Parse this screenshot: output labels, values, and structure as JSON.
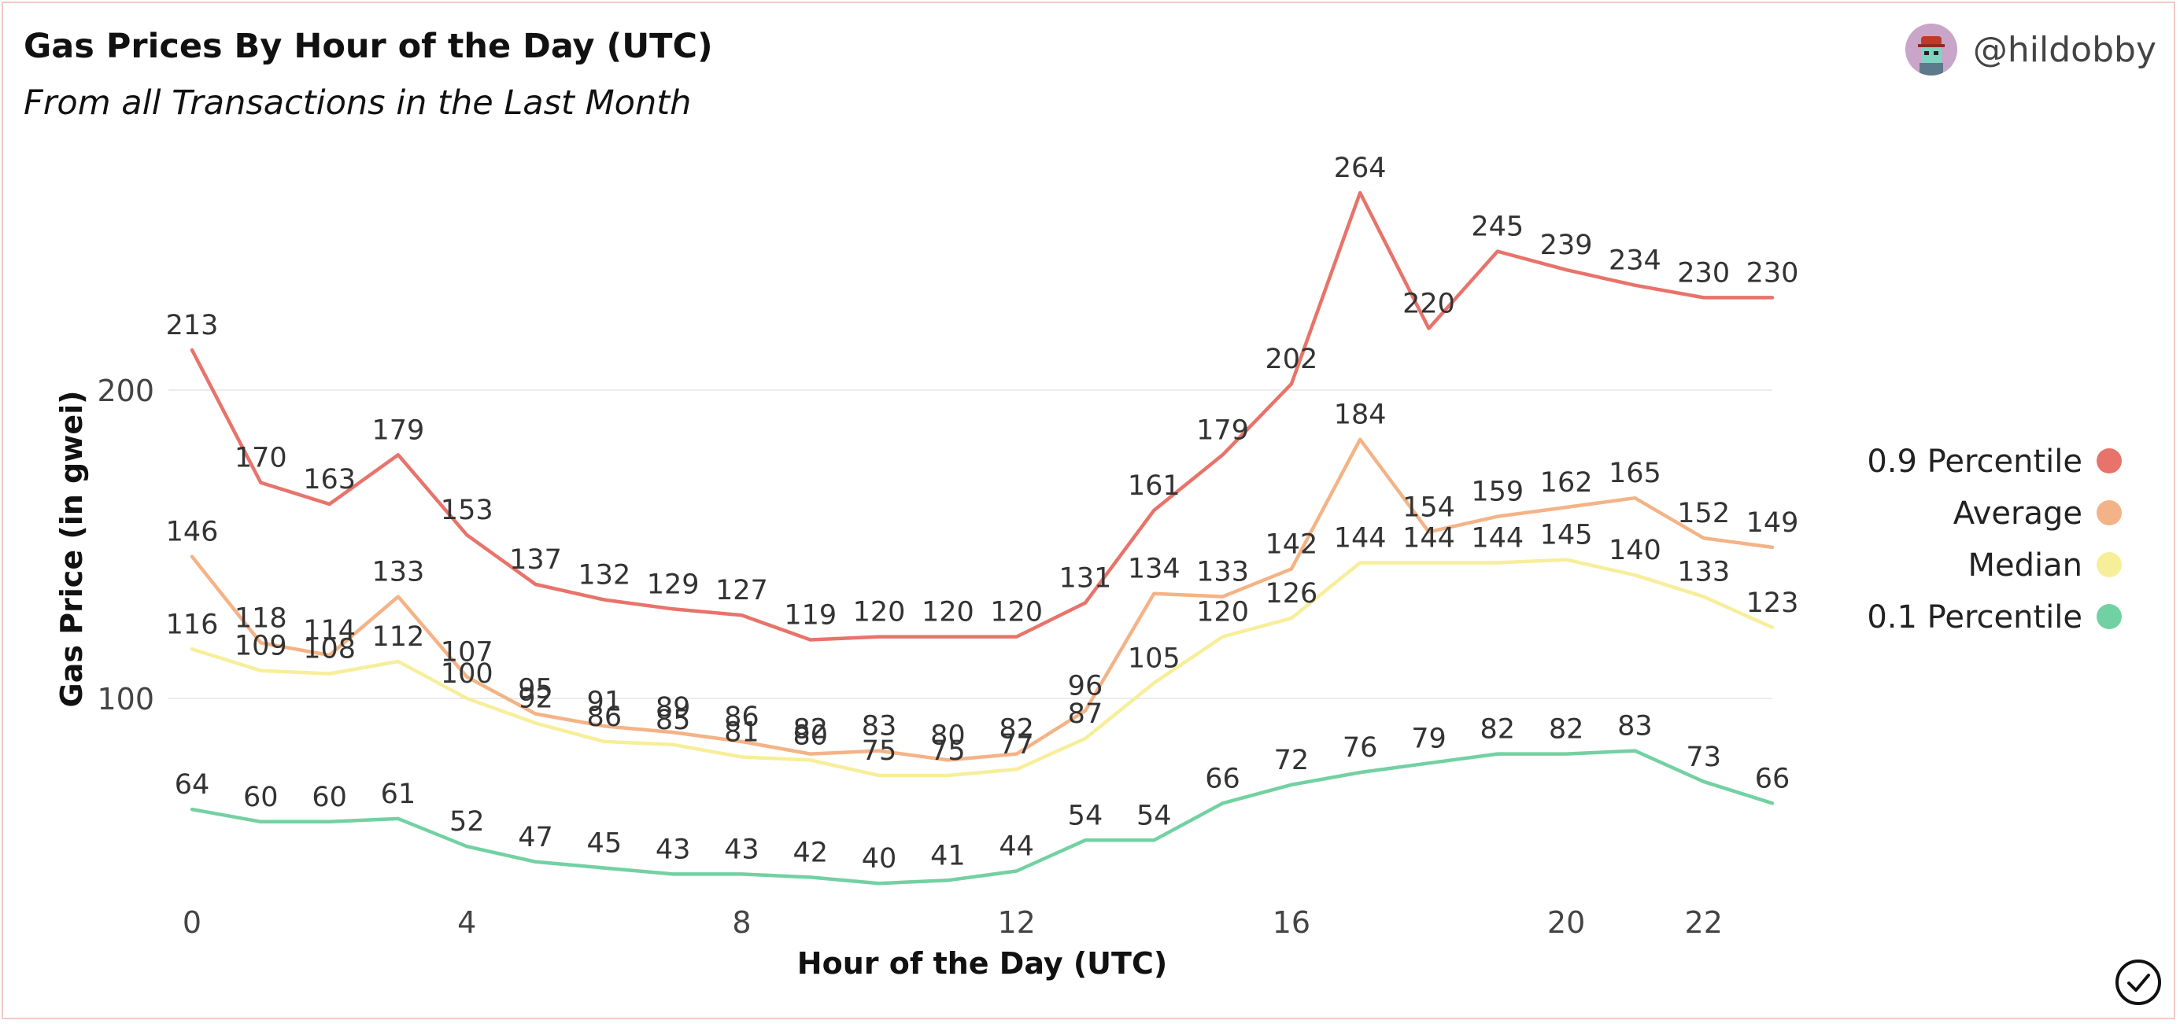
{
  "header": {
    "title": "Gas Prices By Hour of the Day (UTC)",
    "subtitle": "From all Transactions in the Last Month",
    "username": "@hildobby"
  },
  "icons": {
    "avatar": "avatar-icon",
    "verified": "check-circle-icon"
  },
  "chart_data": {
    "type": "line",
    "title": "Gas Prices By Hour of the Day (UTC)",
    "subtitle": "From all Transactions in the Last Month",
    "xlabel": "Hour of the Day (UTC)",
    "ylabel": "Gas Price (in gwei)",
    "x": [
      0,
      1,
      2,
      3,
      4,
      5,
      6,
      7,
      8,
      9,
      10,
      11,
      12,
      13,
      14,
      15,
      16,
      17,
      18,
      19,
      20,
      21,
      22,
      23
    ],
    "x_ticks": [
      0,
      4,
      8,
      12,
      16,
      20,
      22
    ],
    "y_ticks": [
      100,
      200
    ],
    "xlim": [
      0,
      23
    ],
    "ylim": [
      10,
      270
    ],
    "grid": "horizontal",
    "legend_position": "right",
    "series": [
      {
        "name": "0.9 Percentile",
        "color": "#e8736a",
        "values": [
          213,
          170,
          163,
          179,
          153,
          137,
          132,
          129,
          127,
          119,
          120,
          120,
          120,
          131,
          161,
          179,
          202,
          264,
          220,
          245,
          239,
          234,
          230,
          230
        ]
      },
      {
        "name": "Average",
        "color": "#f4b386",
        "values": [
          146,
          118,
          114,
          133,
          107,
          95,
          91,
          89,
          86,
          82,
          83,
          80,
          82,
          96,
          134,
          133,
          142,
          184,
          154,
          159,
          162,
          165,
          152,
          149
        ]
      },
      {
        "name": "Median",
        "color": "#f7ee9a",
        "values": [
          116,
          109,
          108,
          112,
          100,
          92,
          86,
          85,
          81,
          80,
          75,
          75,
          77,
          87,
          105,
          120,
          126,
          144,
          144,
          144,
          145,
          140,
          133,
          123
        ]
      },
      {
        "name": "0.1 Percentile",
        "color": "#72d1a2",
        "values": [
          64,
          60,
          60,
          61,
          52,
          47,
          45,
          43,
          43,
          42,
          40,
          41,
          44,
          54,
          54,
          66,
          72,
          76,
          79,
          82,
          82,
          83,
          73,
          66
        ]
      }
    ]
  }
}
